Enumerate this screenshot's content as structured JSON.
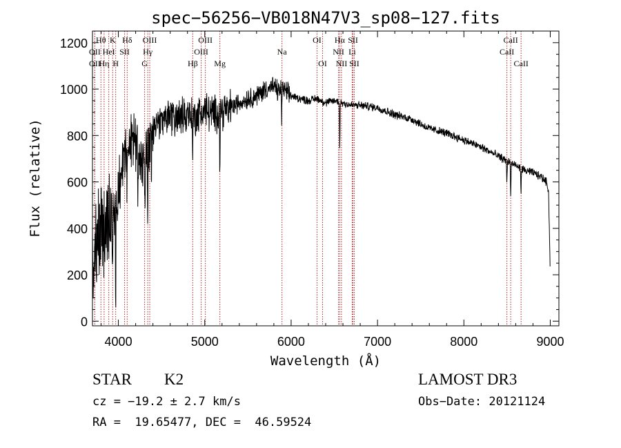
{
  "chart_data": {
    "type": "line",
    "title": "spec−56256−VB018N47V3_sp08−127.fits",
    "xlabel": "Wavelength (Å)",
    "ylabel": "Flux (relative)",
    "xlim": [
      3700,
      9100
    ],
    "ylim": [
      -20,
      1250
    ],
    "xticks": [
      4000,
      5000,
      6000,
      7000,
      8000,
      9000
    ],
    "yticks": [
      0,
      200,
      400,
      600,
      800,
      1000,
      1200
    ],
    "xtick_labels": [
      "4000",
      "5000",
      "6000",
      "7000",
      "8000",
      "9000"
    ],
    "ytick_labels": [
      "0",
      "200",
      "400",
      "600",
      "800",
      "1000",
      "1200"
    ],
    "line_color": "#000000",
    "marker_color": "#b22222",
    "spectrum_anchor_points": {
      "x": [
        3700,
        3720,
        3750,
        3800,
        3850,
        3900,
        3950,
        4000,
        4050,
        4100,
        4150,
        4200,
        4250,
        4300,
        4350,
        4400,
        4450,
        4500,
        4600,
        4700,
        4800,
        4900,
        5000,
        5100,
        5200,
        5300,
        5400,
        5500,
        5600,
        5700,
        5800,
        5850,
        5900,
        6000,
        6100,
        6200,
        6300,
        6400,
        6500,
        6600,
        6700,
        6800,
        6900,
        7000,
        7200,
        7400,
        7600,
        7800,
        8000,
        8200,
        8400,
        8500,
        8600,
        8700,
        8800,
        8900,
        8960,
        8980,
        9000
      ],
      "y": [
        200,
        280,
        350,
        420,
        400,
        450,
        480,
        560,
        680,
        720,
        760,
        770,
        720,
        680,
        760,
        820,
        850,
        860,
        890,
        880,
        900,
        880,
        910,
        890,
        910,
        920,
        940,
        960,
        970,
        1000,
        1010,
        990,
        1000,
        970,
        960,
        950,
        960,
        940,
        950,
        940,
        930,
        930,
        925,
        920,
        890,
        870,
        830,
        810,
        780,
        750,
        710,
        690,
        670,
        650,
        640,
        620,
        600,
        560,
        200
      ]
    },
    "absorption_features": [
      {
        "wavelength": 3934,
        "depth": 350
      },
      {
        "wavelength": 3969,
        "depth": 320
      },
      {
        "wavelength": 4101,
        "depth": 180
      },
      {
        "wavelength": 4227,
        "depth": 220
      },
      {
        "wavelength": 4308,
        "depth": 260
      },
      {
        "wavelength": 4340,
        "depth": 300
      },
      {
        "wavelength": 4383,
        "depth": 160
      },
      {
        "wavelength": 4861,
        "depth": 160
      },
      {
        "wavelength": 5175,
        "depth": 240
      },
      {
        "wavelength": 5270,
        "depth": 90
      },
      {
        "wavelength": 5890,
        "depth": 110
      },
      {
        "wavelength": 6563,
        "depth": 200
      },
      {
        "wavelength": 8498,
        "depth": 90
      },
      {
        "wavelength": 8542,
        "depth": 150
      },
      {
        "wavelength": 8662,
        "depth": 110
      }
    ],
    "line_markers": [
      {
        "wavelength": 3727,
        "label": "OII",
        "row": 2
      },
      {
        "wavelength": 3727,
        "label": "OII",
        "row": 3
      },
      {
        "wavelength": 3798,
        "label": "Hθ",
        "row": 1
      },
      {
        "wavelength": 3835,
        "label": "Hη",
        "row": 3
      },
      {
        "wavelength": 3889,
        "label": "HeI",
        "row": 2
      },
      {
        "wavelength": 3934,
        "label": "K",
        "row": 1
      },
      {
        "wavelength": 3969,
        "label": "H",
        "row": 3
      },
      {
        "wavelength": 4072,
        "label": "SII",
        "row": 2
      },
      {
        "wavelength": 4102,
        "label": "Hδ",
        "row": 1
      },
      {
        "wavelength": 4304,
        "label": "G",
        "row": 3
      },
      {
        "wavelength": 4340,
        "label": "Hγ",
        "row": 2
      },
      {
        "wavelength": 4363,
        "label": "OIII",
        "row": 1
      },
      {
        "wavelength": 4861,
        "label": "Hβ",
        "row": 3
      },
      {
        "wavelength": 4959,
        "label": "OIII",
        "row": 2
      },
      {
        "wavelength": 5007,
        "label": "OIII",
        "row": 1
      },
      {
        "wavelength": 5175,
        "label": "Mg",
        "row": 3
      },
      {
        "wavelength": 5894,
        "label": "Na",
        "row": 2
      },
      {
        "wavelength": 6300,
        "label": "OI",
        "row": 1
      },
      {
        "wavelength": 6364,
        "label": "OI",
        "row": 3
      },
      {
        "wavelength": 6548,
        "label": "NII",
        "row": 2
      },
      {
        "wavelength": 6563,
        "label": "Hα",
        "row": 1
      },
      {
        "wavelength": 6583,
        "label": "NII",
        "row": 3
      },
      {
        "wavelength": 6707,
        "label": "Li",
        "row": 2
      },
      {
        "wavelength": 6716,
        "label": "SII",
        "row": 1
      },
      {
        "wavelength": 6731,
        "label": "SII",
        "row": 3
      },
      {
        "wavelength": 8498,
        "label": "CaII",
        "row": 2
      },
      {
        "wavelength": 8542,
        "label": "CaII",
        "row": 1
      },
      {
        "wavelength": 8662,
        "label": "CaII",
        "row": 3
      }
    ]
  },
  "info": {
    "object_class": "STAR",
    "subclass": "K2",
    "survey": "LAMOST DR3",
    "cz": "cz = −19.2 ± 2.7 km/s",
    "obs_date": "Obs−Date: 20121124",
    "coords": "RA =  19.65477, DEC =  46.59524"
  }
}
